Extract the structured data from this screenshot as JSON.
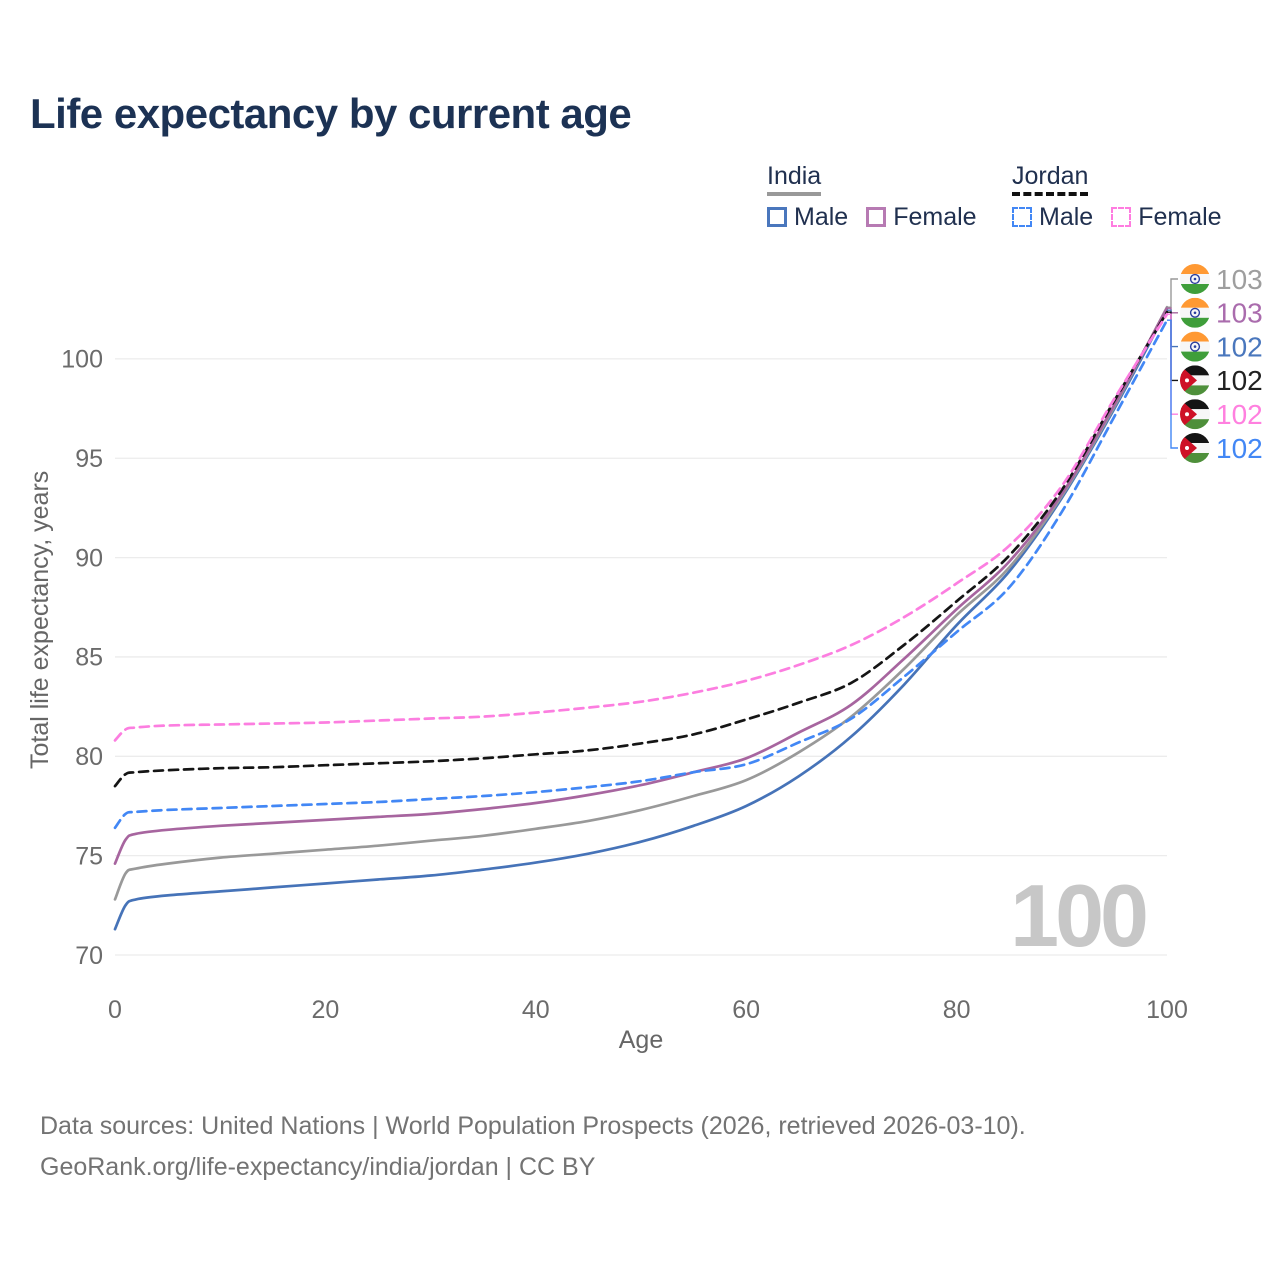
{
  "title": "Life expectancy by current age",
  "legend": {
    "groups": [
      {
        "name": "India",
        "line_style": "solid",
        "underline_color": "#999999",
        "items": [
          {
            "label": "Male",
            "color": "#4a77bd"
          },
          {
            "label": "Female",
            "color": "#b77ab3"
          }
        ]
      },
      {
        "name": "Jordan",
        "line_style": "dashed",
        "underline_color": "#111111",
        "items": [
          {
            "label": "Male",
            "color": "#4287f5"
          },
          {
            "label": "Female",
            "color": "#ff7ce0"
          }
        ]
      }
    ]
  },
  "chart_data": {
    "type": "line",
    "title": "Life expectancy by current age",
    "xlabel": "Age",
    "ylabel": "Total life expectancy, years",
    "xlim": [
      0,
      100
    ],
    "ylim": [
      70,
      103
    ],
    "x_ticks": [
      0,
      20,
      40,
      60,
      80,
      100
    ],
    "y_ticks": [
      70,
      75,
      80,
      85,
      90,
      95,
      100
    ],
    "grid": true,
    "legend_position": "top-right",
    "watermark": "100",
    "ages": [
      0,
      1,
      2,
      5,
      10,
      15,
      20,
      25,
      30,
      35,
      40,
      45,
      50,
      55,
      60,
      65,
      70,
      75,
      80,
      85,
      90,
      95,
      100
    ],
    "series": [
      {
        "id": "india_male",
        "name": "India Male",
        "country": "India",
        "sex": "Male",
        "color": "#4673b8",
        "dash": false,
        "values": [
          71.3,
          72.5,
          72.8,
          73.0,
          73.2,
          73.4,
          73.6,
          73.8,
          74.0,
          74.3,
          74.65,
          75.1,
          75.7,
          76.5,
          77.5,
          79.0,
          81.0,
          83.6,
          86.6,
          89.3,
          93.0,
          97.5,
          102.45
        ]
      },
      {
        "id": "india_total",
        "name": "India",
        "country": "India",
        "sex": "Both",
        "color": "#999999",
        "dash": false,
        "values": [
          72.8,
          74.1,
          74.35,
          74.6,
          74.9,
          75.1,
          75.3,
          75.5,
          75.75,
          76.0,
          76.35,
          76.75,
          77.3,
          78.0,
          78.8,
          80.2,
          82.0,
          84.4,
          87.1,
          89.5,
          93.1,
          97.6,
          102.6
        ]
      },
      {
        "id": "india_female",
        "name": "India Female",
        "country": "India",
        "sex": "Female",
        "color": "#a7659f",
        "dash": false,
        "values": [
          74.6,
          75.8,
          76.1,
          76.3,
          76.5,
          76.65,
          76.8,
          76.95,
          77.1,
          77.35,
          77.65,
          78.05,
          78.55,
          79.2,
          79.9,
          81.2,
          82.6,
          84.9,
          87.4,
          89.8,
          93.2,
          97.7,
          102.55
        ]
      },
      {
        "id": "jordan_male",
        "name": "Jordan Male",
        "country": "Jordan",
        "sex": "Male",
        "color": "#4287f5",
        "dash": true,
        "values": [
          76.4,
          77.1,
          77.2,
          77.3,
          77.4,
          77.5,
          77.6,
          77.7,
          77.85,
          78.0,
          78.2,
          78.45,
          78.75,
          79.2,
          79.6,
          80.7,
          81.9,
          84.0,
          86.25,
          88.5,
          92.3,
          97.1,
          101.95
        ]
      },
      {
        "id": "jordan_total",
        "name": "Jordan",
        "country": "Jordan",
        "sex": "Both",
        "color": "#151515",
        "dash": true,
        "values": [
          78.5,
          79.1,
          79.2,
          79.3,
          79.4,
          79.45,
          79.55,
          79.65,
          79.75,
          79.9,
          80.1,
          80.3,
          80.65,
          81.1,
          81.85,
          82.7,
          83.7,
          85.6,
          87.8,
          90.1,
          93.4,
          97.9,
          102.35
        ]
      },
      {
        "id": "jordan_female",
        "name": "Jordan Female",
        "country": "Jordan",
        "sex": "Female",
        "color": "#fc7ee0",
        "dash": true,
        "values": [
          80.8,
          81.35,
          81.45,
          81.55,
          81.6,
          81.65,
          81.7,
          81.8,
          81.9,
          82.0,
          82.2,
          82.45,
          82.75,
          83.2,
          83.8,
          84.6,
          85.6,
          87.0,
          88.7,
          90.6,
          93.6,
          98.0,
          102.25
        ]
      }
    ],
    "end_labels": [
      {
        "series": "india_total",
        "value": "103",
        "color": "#9e9e9e",
        "flag": "india"
      },
      {
        "series": "india_female",
        "value": "103",
        "color": "#aa6cad",
        "flag": "india"
      },
      {
        "series": "india_male",
        "value": "102",
        "color": "#4a77bd",
        "flag": "india"
      },
      {
        "series": "jordan_total",
        "value": "102",
        "color": "#212121",
        "flag": "jordan"
      },
      {
        "series": "jordan_female",
        "value": "102",
        "color": "#ff80df",
        "flag": "jordan"
      },
      {
        "series": "jordan_male",
        "value": "102",
        "color": "#4287f5",
        "flag": "jordan"
      }
    ]
  },
  "footer": {
    "line1": "Data sources: United Nations | World Population Prospects (2026, retrieved 2026-03-10).",
    "line2": "GeoRank.org/life-expectancy/india/jordan | CC BY"
  },
  "colors": {
    "title": "#1c3254",
    "axis_text": "#6b6b6b",
    "grid": "#ececec",
    "watermark": "#c7c7c7",
    "flag_india": {
      "saffron": "#ff9933",
      "white": "#f7f7f7",
      "green": "#3f9e3a",
      "chakra": "#2b3f9e"
    },
    "flag_jordan": {
      "black": "#141414",
      "white": "#f7f7f7",
      "green": "#4e8f3a",
      "red": "#ce1126"
    }
  }
}
